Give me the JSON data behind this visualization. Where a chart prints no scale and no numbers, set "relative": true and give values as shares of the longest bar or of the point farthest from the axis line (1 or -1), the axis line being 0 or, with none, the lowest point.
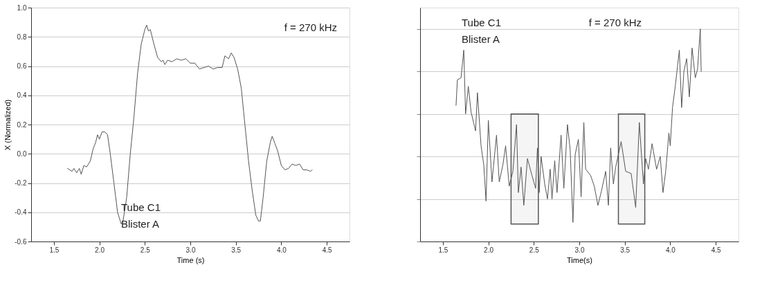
{
  "chart_data": [
    {
      "type": "line",
      "xlabel": "Time (s)",
      "ylabel": "X (Normalized)",
      "xlim": [
        1.25,
        4.75
      ],
      "ylim": [
        -0.6,
        1.0
      ],
      "xticks": [
        1.5,
        {
          "value": 2,
          "label": "2.0"
        },
        2.5,
        {
          "value": 3,
          "label": "3.0"
        },
        3.5,
        {
          "value": 4,
          "label": "4.0"
        },
        4.5
      ],
      "yticks": [
        -0.6,
        -0.4,
        -0.2,
        {
          "value": 0,
          "label": "0.0"
        },
        0.2,
        0.4,
        0.6,
        0.8,
        {
          "value": 1,
          "label": "1.0"
        }
      ],
      "grid": "y",
      "line_style": "solid",
      "annotations": [
        "f = 270 kHz",
        "Tube C1",
        "Blister A"
      ],
      "series": [
        {
          "color": "#555555",
          "x": [
            1.65,
            1.7,
            1.72,
            1.75,
            1.78,
            1.8,
            1.83,
            1.86,
            1.9,
            1.93,
            1.96,
            1.98,
            2.0,
            2.03,
            2.06,
            2.09,
            2.12,
            2.16,
            2.2,
            2.24,
            2.26,
            2.3,
            2.34,
            2.38,
            2.42,
            2.46,
            2.5,
            2.52,
            2.54,
            2.56,
            2.6,
            2.64,
            2.68,
            2.7,
            2.72,
            2.75,
            2.8,
            2.85,
            2.9,
            2.95,
            3.0,
            3.05,
            3.1,
            3.15,
            3.2,
            3.25,
            3.3,
            3.35,
            3.38,
            3.42,
            3.45,
            3.48,
            3.52,
            3.56,
            3.6,
            3.64,
            3.68,
            3.72,
            3.75,
            3.77,
            3.8,
            3.84,
            3.88,
            3.9,
            3.93,
            3.96,
            4.0,
            4.04,
            4.08,
            4.12,
            4.16,
            4.2,
            4.24,
            4.28,
            4.32,
            4.34
          ],
          "values": [
            -0.1,
            -0.12,
            -0.1,
            -0.13,
            -0.1,
            -0.14,
            -0.08,
            -0.09,
            -0.05,
            0.03,
            0.08,
            0.13,
            0.1,
            0.15,
            0.15,
            0.13,
            0.0,
            -0.2,
            -0.4,
            -0.48,
            -0.46,
            -0.3,
            0.0,
            0.25,
            0.55,
            0.75,
            0.85,
            0.88,
            0.84,
            0.85,
            0.75,
            0.66,
            0.63,
            0.64,
            0.61,
            0.64,
            0.63,
            0.65,
            0.64,
            0.65,
            0.62,
            0.62,
            0.58,
            0.59,
            0.6,
            0.58,
            0.59,
            0.59,
            0.67,
            0.65,
            0.69,
            0.66,
            0.58,
            0.45,
            0.2,
            -0.05,
            -0.25,
            -0.42,
            -0.46,
            -0.46,
            -0.3,
            -0.05,
            0.08,
            0.12,
            0.07,
            0.02,
            -0.08,
            -0.11,
            -0.1,
            -0.07,
            -0.08,
            -0.07,
            -0.11,
            -0.11,
            -0.12,
            -0.11
          ]
        }
      ]
    },
    {
      "type": "line",
      "xlabel": "Time(s)",
      "relative": true,
      "xlim": [
        1.25,
        4.75
      ],
      "xticks": [
        1.5,
        {
          "value": 2,
          "label": "2.0"
        },
        2.5,
        {
          "value": 3,
          "label": "3.0"
        },
        3.5,
        {
          "value": 4,
          "label": "4.0"
        },
        4.5
      ],
      "grid": "y",
      "tick_labels": "x",
      "line_style": "solid",
      "annotations": [
        "f = 270 kHz",
        "Tube C1",
        "Blister A"
      ],
      "bands": [
        {
          "axis": "x",
          "from": 2.25,
          "to": 2.55,
          "color": "#555555"
        },
        {
          "axis": "x",
          "from": 3.43,
          "to": 3.72,
          "color": "#555555"
        }
      ],
      "series": [
        {
          "color": "#555555",
          "x": [
            1.645,
            1.66,
            1.7,
            1.73,
            1.75,
            1.78,
            1.81,
            1.86,
            1.88,
            1.92,
            1.95,
            1.975,
            2.0,
            2.04,
            2.09,
            2.12,
            2.16,
            2.19,
            2.23,
            2.27,
            2.31,
            2.33,
            2.36,
            2.39,
            2.43,
            2.48,
            2.52,
            2.54,
            2.56,
            2.58,
            2.62,
            2.65,
            2.68,
            2.7,
            2.73,
            2.755,
            2.8,
            2.83,
            2.87,
            2.9,
            2.93,
            2.955,
            2.99,
            3.02,
            3.05,
            3.07,
            3.125,
            3.165,
            3.205,
            3.245,
            3.29,
            3.32,
            3.345,
            3.375,
            3.4,
            3.43,
            3.46,
            3.51,
            3.57,
            3.62,
            3.66,
            3.705,
            3.73,
            3.76,
            3.8,
            3.85,
            3.89,
            3.92,
            3.95,
            3.985,
            4.0,
            4.025,
            4.055,
            4.1,
            4.125,
            4.15,
            4.18,
            4.21,
            4.24,
            4.275,
            4.3,
            4.33,
            4.34
          ],
          "values": [
            0.64,
            0.76,
            0.77,
            0.9,
            0.6,
            0.73,
            0.61,
            0.52,
            0.7,
            0.45,
            0.36,
            0.19,
            0.57,
            0.28,
            0.5,
            0.28,
            0.36,
            0.45,
            0.26,
            0.33,
            0.55,
            0.23,
            0.35,
            0.17,
            0.39,
            0.31,
            0.25,
            0.44,
            0.23,
            0.4,
            0.27,
            0.2,
            0.34,
            0.2,
            0.38,
            0.23,
            0.5,
            0.25,
            0.55,
            0.43,
            0.09,
            0.41,
            0.48,
            0.21,
            0.56,
            0.34,
            0.31,
            0.26,
            0.17,
            0.24,
            0.33,
            0.17,
            0.44,
            0.27,
            0.35,
            0.41,
            0.47,
            0.33,
            0.32,
            0.16,
            0.56,
            0.27,
            0.39,
            0.34,
            0.46,
            0.34,
            0.4,
            0.23,
            0.33,
            0.51,
            0.45,
            0.63,
            0.73,
            0.9,
            0.63,
            0.8,
            0.86,
            0.68,
            0.91,
            0.77,
            0.81,
            1.0,
            0.8
          ]
        }
      ]
    }
  ]
}
